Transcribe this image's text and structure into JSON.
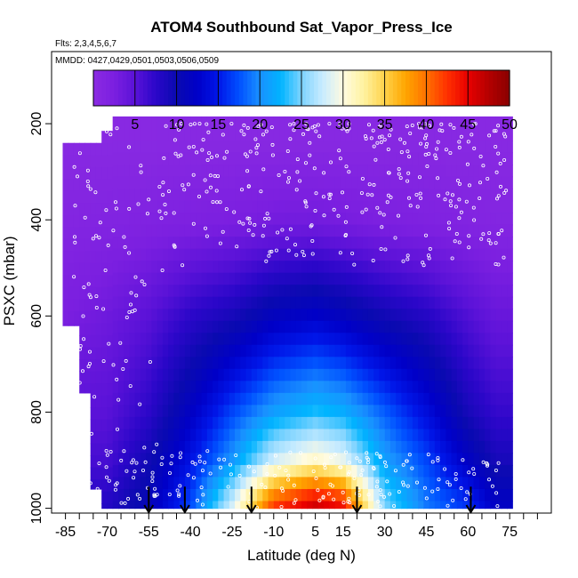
{
  "chart_data": {
    "type": "heatmap",
    "title": "ATOM4 Southbound Sat_Vapor_Press_Ice",
    "subtitle_flights": "Flts: 2,3,4,5,6,7",
    "subtitle_dates": "MMDD: 0427,0429,0501,0503,0506,0509",
    "xlabel": "Latitude (deg N)",
    "ylabel": "PSXC (mbar)",
    "xlim": [
      -90,
      90
    ],
    "ylim": [
      1010,
      50
    ],
    "y_reversed": true,
    "x_ticks": [
      -85,
      -70,
      -55,
      -40,
      -25,
      -10,
      5,
      15,
      30,
      45,
      60,
      75
    ],
    "y_ticks": [
      200,
      400,
      600,
      800,
      1000
    ],
    "colorbar": {
      "min": 0,
      "max": 50,
      "ticks": [
        5,
        10,
        15,
        20,
        25,
        30,
        35,
        40,
        45,
        50
      ],
      "colors": [
        "#8a2be2",
        "#7b1fe0",
        "#5a12d8",
        "#2b07c9",
        "#0a0ab0",
        "#0000c8",
        "#0016e8",
        "#0050ff",
        "#1a90ff",
        "#00b4ff",
        "#7dd3ff",
        "#c7ebff",
        "#fffbe0",
        "#fff2a0",
        "#ffd24a",
        "#ffa500",
        "#ff7200",
        "#ff3000",
        "#e80000",
        "#b40000",
        "#8a0000"
      ]
    },
    "profile_latitudes": [
      -55,
      -42,
      -18,
      20,
      61
    ],
    "grid": false,
    "series": [
      {
        "pressure": 235,
        "values_by_lat": {
          "-85": 0.4,
          "-70": 0.4,
          "-55": 0.4,
          "-40": 0.5,
          "-25": 0.5,
          "-10": 0.5,
          "5": 0.5,
          "15": 0.5,
          "30": 0.5,
          "45": 0.5,
          "60": 0.4,
          "70": 0.4
        }
      },
      {
        "pressure": 410,
        "values_by_lat": {
          "-85": 1.2,
          "-70": 1.5,
          "-55": 1.8,
          "-40": 2.2,
          "-25": 2.6,
          "-10": 3.2,
          "5": 3.4,
          "15": 3.0,
          "30": 2.4,
          "45": 2.0,
          "60": 1.5,
          "70": 1.2
        }
      },
      {
        "pressure": 600,
        "values_by_lat": {
          "-85": 2.5,
          "-70": 3.5,
          "-55": 5.0,
          "-40": 7.5,
          "-25": 9.0,
          "-10": 11.5,
          "5": 12.5,
          "15": 11.5,
          "30": 9.5,
          "45": 8.0,
          "60": 5.5,
          "70": 4.0
        }
      },
      {
        "pressure": 800,
        "values_by_lat": {
          "-70": 5.0,
          "-55": 7.5,
          "-40": 12.0,
          "-25": 17.0,
          "-10": 21.0,
          "5": 23.0,
          "15": 22.0,
          "30": 18.0,
          "45": 14.0,
          "60": 9.0,
          "70": 7.0
        }
      },
      {
        "pressure": 900,
        "values_by_lat": {
          "-70": 6.0,
          "-55": 9.5,
          "-40": 14.5,
          "-25": 20.5,
          "-10": 28.0,
          "5": 31.0,
          "15": 29.0,
          "30": 21.0,
          "45": 17.0,
          "60": 12.0,
          "70": 9.0
        }
      },
      {
        "pressure": 990,
        "values_by_lat": {
          "-70": 8.0,
          "-55": 11.0,
          "-40": 17.0,
          "-25": 28.0,
          "-10": 42.0,
          "5": 46.0,
          "15": 44.0,
          "30": 25.0,
          "45": 19.0,
          "60": 16.0,
          "70": 12.0
        }
      }
    ]
  }
}
